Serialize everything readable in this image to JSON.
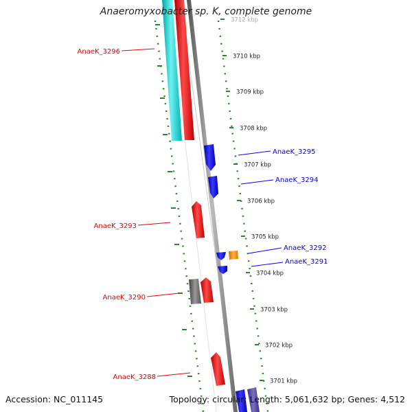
{
  "title": "Anaeromyxobacter sp. K, complete genome",
  "footer": {
    "accession": "Accession: NC_011145",
    "summary": "Topology: circular; Length: 5,061,632 bp; Genes: 4,512"
  },
  "colors": {
    "forward": "#ee0000",
    "reverse": "#0000ee",
    "rna": "#00c8c8",
    "other": "#ff8800",
    "pseudo": "#666666",
    "ticks": "#228B22"
  },
  "ticks": [
    {
      "label": "3712 kbp"
    },
    {
      "label": "3710 kbp"
    },
    {
      "label": "3709 kbp"
    },
    {
      "label": "3708 kbp"
    },
    {
      "label": "3707 kbp"
    },
    {
      "label": "3706 kbp"
    },
    {
      "label": "3705 kbp"
    },
    {
      "label": "3704 kbp"
    },
    {
      "label": "3703 kbp"
    },
    {
      "label": "3702 kbp"
    },
    {
      "label": "3701 kbp"
    }
  ],
  "gene_labels": [
    {
      "name": "AnaeK_3296",
      "strand": "forward"
    },
    {
      "name": "AnaeK_3295",
      "strand": "reverse"
    },
    {
      "name": "AnaeK_3294",
      "strand": "reverse"
    },
    {
      "name": "AnaeK_3293",
      "strand": "forward"
    },
    {
      "name": "AnaeK_3292",
      "strand": "reverse"
    },
    {
      "name": "AnaeK_3291",
      "strand": "reverse"
    },
    {
      "name": "AnaeK_3290",
      "strand": "forward"
    },
    {
      "name": "AnaeK_3288",
      "strand": "forward"
    }
  ]
}
